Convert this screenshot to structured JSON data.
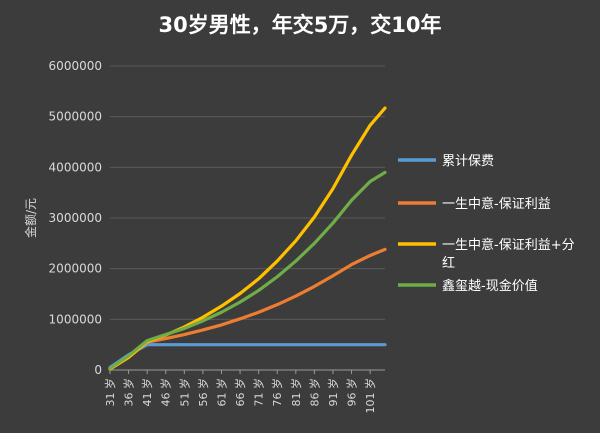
{
  "chart_data": {
    "type": "line",
    "title": "30岁男性，年交5万，交10年",
    "ylabel": "金额/元",
    "xlabel": "",
    "ylim": [
      0,
      6000000
    ],
    "y_ticks": [
      "0",
      "1000000",
      "2000000",
      "3000000",
      "4000000",
      "5000000",
      "6000000"
    ],
    "x_ticks": [
      "31 岁",
      "36 岁",
      "41 岁",
      "46 岁",
      "51 岁",
      "56 岁",
      "61 岁",
      "66 岁",
      "71 岁",
      "76 岁",
      "81 岁",
      "86 岁",
      "91 岁",
      "96 岁",
      "101 岁"
    ],
    "x": [
      31,
      36,
      41,
      46,
      51,
      56,
      61,
      66,
      71,
      76,
      81,
      86,
      91,
      96,
      101,
      105
    ],
    "grid": true,
    "legend_position": "right",
    "series": [
      {
        "name": "累计保费",
        "color": "#5b9bd5",
        "values": [
          50000,
          300000,
          500000,
          500000,
          500000,
          500000,
          500000,
          500000,
          500000,
          500000,
          500000,
          500000,
          500000,
          500000,
          500000,
          500000
        ]
      },
      {
        "name": "一生中意-保证利益",
        "color": "#ed7d31",
        "values": [
          20000,
          250000,
          550000,
          620000,
          700000,
          790000,
          890000,
          1010000,
          1140000,
          1290000,
          1460000,
          1650000,
          1860000,
          2080000,
          2260000,
          2380000
        ]
      },
      {
        "name": "一生中意-保证利益+分红",
        "color": "#ffc000",
        "values": [
          20000,
          250000,
          560000,
          690000,
          850000,
          1040000,
          1260000,
          1510000,
          1800000,
          2150000,
          2550000,
          3020000,
          3580000,
          4240000,
          4830000,
          5170000
        ]
      },
      {
        "name": "鑫玺越-现金价值",
        "color": "#70ad47",
        "values": [
          30000,
          280000,
          580000,
          700000,
          820000,
          970000,
          1140000,
          1340000,
          1570000,
          1840000,
          2150000,
          2500000,
          2900000,
          3350000,
          3720000,
          3900000
        ]
      }
    ]
  }
}
